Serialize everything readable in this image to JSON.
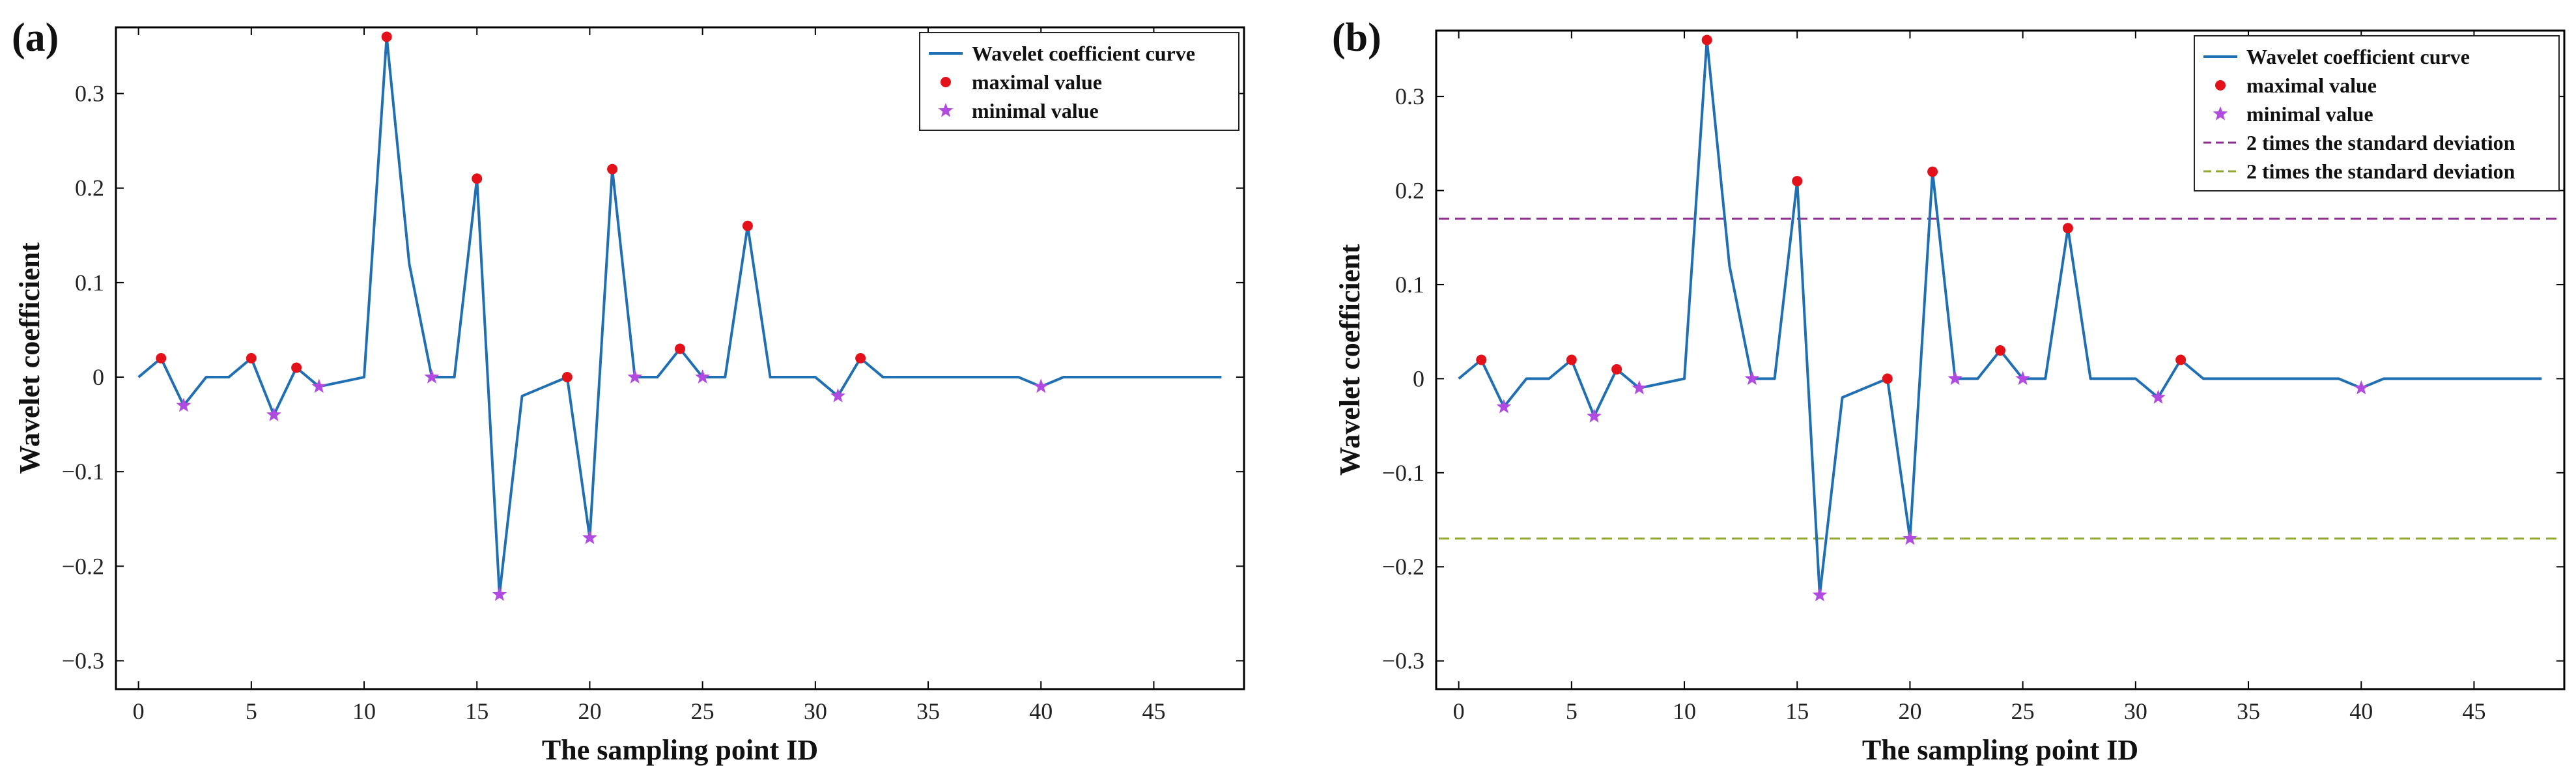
{
  "colors": {
    "curve": "#1f6fb2",
    "max_marker": "#e3121a",
    "min_marker": "#b04ae0",
    "upper_threshold": "#8b2f8f",
    "lower_threshold": "#8ea832"
  },
  "chart_data": [
    {
      "panel": "(a)",
      "type": "line",
      "xlabel": "The sampling point ID",
      "ylabel": "Wavelet coefficient",
      "xlim": [
        -1,
        49
      ],
      "ylim": [
        -0.33,
        0.37
      ],
      "xticks": [
        0,
        5,
        10,
        15,
        20,
        25,
        30,
        35,
        40,
        45
      ],
      "yticks": [
        -0.3,
        -0.2,
        -0.1,
        0,
        0.1,
        0.2,
        0.3
      ],
      "ytick_labels": [
        "−0.3",
        "−0.2",
        "−0.1",
        "0",
        "0.1",
        "0.2",
        "0.3"
      ],
      "grid": false,
      "legend_position": "top-right",
      "series": [
        {
          "name": "Wavelet coefficient curve",
          "x": [
            0,
            1,
            2,
            3,
            4,
            5,
            6,
            7,
            8,
            9,
            10,
            11,
            12,
            13,
            14,
            15,
            16,
            17,
            18,
            19,
            20,
            21,
            22,
            23,
            24,
            25,
            26,
            27,
            28,
            29,
            30,
            31,
            32,
            33,
            34,
            35,
            36,
            37,
            38,
            39,
            40,
            41,
            42,
            43,
            44,
            45,
            46,
            47,
            48
          ],
          "y": [
            0,
            0.02,
            -0.03,
            0,
            0,
            0.02,
            -0.04,
            0.01,
            -0.01,
            -0.005,
            0,
            0.36,
            0.12,
            0,
            0,
            0.21,
            -0.23,
            -0.02,
            -0.01,
            0,
            -0.17,
            0.22,
            0,
            0,
            0.03,
            0,
            0,
            0.16,
            0,
            0,
            0,
            -0.02,
            0.02,
            0,
            0,
            0,
            0,
            0,
            0,
            0,
            -0.01,
            0,
            0,
            0,
            0,
            0,
            0,
            0,
            0
          ]
        }
      ],
      "maxima": {
        "name": "maximal value",
        "x": [
          1,
          5,
          7,
          11,
          15,
          19,
          21,
          24,
          27,
          32
        ],
        "y": [
          0.02,
          0.02,
          0.01,
          0.36,
          0.21,
          0,
          0.22,
          0.03,
          0.16,
          0.02
        ]
      },
      "minima": {
        "name": "minimal value",
        "x": [
          2,
          6,
          8,
          13,
          16,
          20,
          22,
          25,
          31,
          40
        ],
        "y": [
          -0.03,
          -0.04,
          -0.01,
          0,
          -0.23,
          -0.17,
          0,
          0,
          -0.02,
          -0.01
        ]
      },
      "thresholds": []
    },
    {
      "panel": "(b)",
      "type": "line",
      "xlabel": "The sampling point ID",
      "ylabel": "Wavelet coefficient",
      "xlim": [
        -1,
        49
      ],
      "ylim": [
        -0.33,
        0.37
      ],
      "xticks": [
        0,
        5,
        10,
        15,
        20,
        25,
        30,
        35,
        40,
        45
      ],
      "yticks": [
        -0.3,
        -0.2,
        -0.1,
        0,
        0.1,
        0.2,
        0.3
      ],
      "ytick_labels": [
        "−0.3",
        "−0.2",
        "−0.1",
        "0",
        "0.1",
        "0.2",
        "0.3"
      ],
      "grid": false,
      "legend_position": "top-right",
      "series": [
        {
          "name": "Wavelet coefficient curve",
          "x": [
            0,
            1,
            2,
            3,
            4,
            5,
            6,
            7,
            8,
            9,
            10,
            11,
            12,
            13,
            14,
            15,
            16,
            17,
            18,
            19,
            20,
            21,
            22,
            23,
            24,
            25,
            26,
            27,
            28,
            29,
            30,
            31,
            32,
            33,
            34,
            35,
            36,
            37,
            38,
            39,
            40,
            41,
            42,
            43,
            44,
            45,
            46,
            47,
            48
          ],
          "y": [
            0,
            0.02,
            -0.03,
            0,
            0,
            0.02,
            -0.04,
            0.01,
            -0.01,
            -0.005,
            0,
            0.36,
            0.12,
            0,
            0,
            0.21,
            -0.23,
            -0.02,
            -0.01,
            0,
            -0.17,
            0.22,
            0,
            0,
            0.03,
            0,
            0,
            0.16,
            0,
            0,
            0,
            -0.02,
            0.02,
            0,
            0,
            0,
            0,
            0,
            0,
            0,
            -0.01,
            0,
            0,
            0,
            0,
            0,
            0,
            0,
            0
          ]
        }
      ],
      "maxima": {
        "name": "maximal value",
        "x": [
          1,
          5,
          7,
          11,
          15,
          19,
          21,
          24,
          27,
          32
        ],
        "y": [
          0.02,
          0.02,
          0.01,
          0.36,
          0.21,
          0,
          0.22,
          0.03,
          0.16,
          0.02
        ]
      },
      "minima": {
        "name": "minimal value",
        "x": [
          2,
          6,
          8,
          13,
          16,
          20,
          22,
          25,
          31,
          40
        ],
        "y": [
          -0.03,
          -0.04,
          -0.01,
          0,
          -0.23,
          -0.17,
          0,
          0,
          -0.02,
          -0.01
        ]
      },
      "thresholds": [
        {
          "name": "2 times the standard deviation",
          "y": 0.17,
          "color_key": "upper_threshold"
        },
        {
          "name": "2 times the standard deviation",
          "y": -0.17,
          "color_key": "lower_threshold"
        }
      ]
    }
  ]
}
